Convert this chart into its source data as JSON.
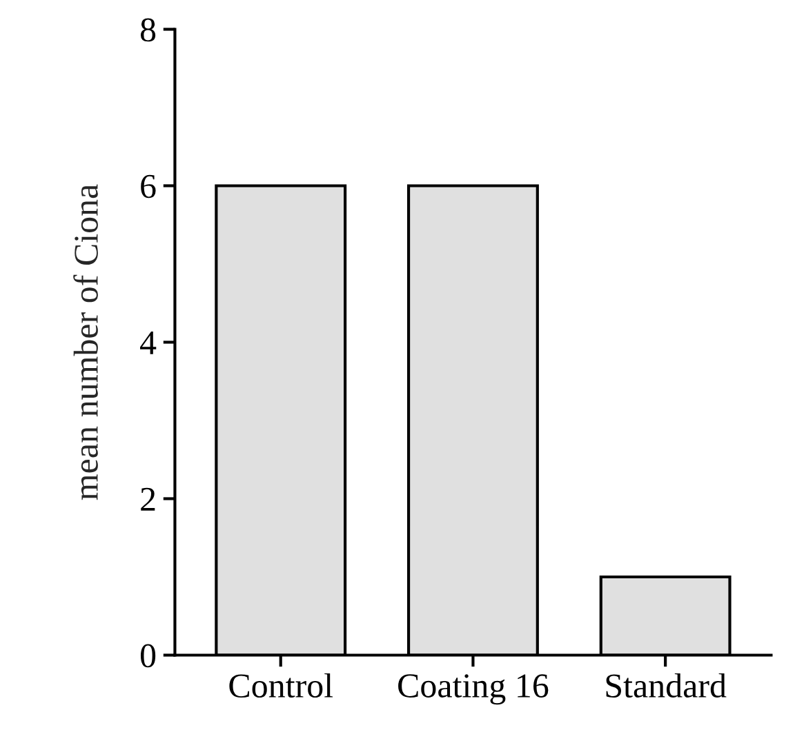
{
  "chart_data": {
    "type": "bar",
    "ylabel": "mean number of Ciona",
    "categories": [
      "Control",
      "Coating 16",
      "Standard"
    ],
    "values": [
      6,
      6,
      1
    ],
    "color": "#e0e0e0",
    "ylim": [
      0,
      8
    ],
    "yticks": [
      0,
      2,
      4,
      6,
      8
    ],
    "grid": false,
    "legend": false
  }
}
